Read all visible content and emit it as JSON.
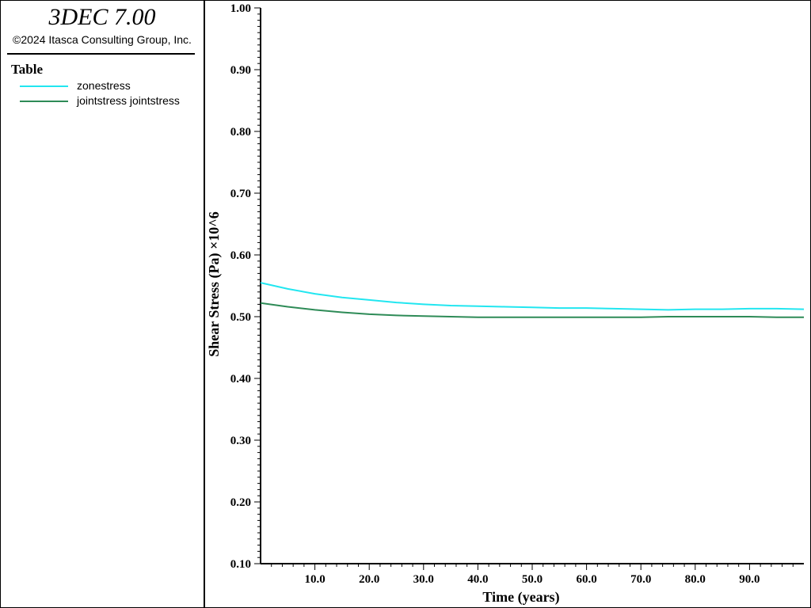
{
  "header": {
    "app_title": "3DEC 7.00",
    "copyright": "©2024 Itasca Consulting Group, Inc."
  },
  "legend": {
    "title": "Table",
    "items": [
      {
        "label": "zonestress",
        "color": "#22e6f0"
      },
      {
        "label": "jointstress jointstress",
        "color": "#2e8b57"
      }
    ]
  },
  "chart_data": {
    "type": "line",
    "xlabel": "Time (years)",
    "ylabel": "Shear Stress (Pa) ×10^6",
    "xlim": [
      0,
      100
    ],
    "ylim": [
      0.1,
      1.0
    ],
    "x_ticks": [
      10,
      20,
      30,
      40,
      50,
      60,
      70,
      80,
      90
    ],
    "x_tick_labels": [
      "10.0",
      "20.0",
      "30.0",
      "40.0",
      "50.0",
      "60.0",
      "70.0",
      "80.0",
      "90.0"
    ],
    "y_ticks": [
      0.1,
      0.2,
      0.3,
      0.4,
      0.5,
      0.6,
      0.7,
      0.8,
      0.9,
      1.0
    ],
    "y_tick_labels": [
      "0.10",
      "0.20",
      "0.30",
      "0.40",
      "0.50",
      "0.60",
      "0.70",
      "0.80",
      "0.90",
      "1.00"
    ],
    "grid": false,
    "series": [
      {
        "name": "zonestress",
        "color": "#22e6f0",
        "x": [
          0,
          5,
          10,
          15,
          20,
          25,
          30,
          35,
          40,
          45,
          50,
          55,
          60,
          65,
          70,
          75,
          80,
          85,
          90,
          95,
          100
        ],
        "y": [
          0.555,
          0.545,
          0.537,
          0.531,
          0.527,
          0.523,
          0.52,
          0.518,
          0.517,
          0.516,
          0.515,
          0.514,
          0.514,
          0.513,
          0.512,
          0.511,
          0.512,
          0.512,
          0.513,
          0.513,
          0.512
        ]
      },
      {
        "name": "jointstress jointstress",
        "color": "#2e8b57",
        "x": [
          0,
          5,
          10,
          15,
          20,
          25,
          30,
          35,
          40,
          45,
          50,
          55,
          60,
          65,
          70,
          75,
          80,
          85,
          90,
          95,
          100
        ],
        "y": [
          0.522,
          0.516,
          0.511,
          0.507,
          0.504,
          0.502,
          0.501,
          0.5,
          0.499,
          0.499,
          0.499,
          0.499,
          0.499,
          0.499,
          0.499,
          0.5,
          0.5,
          0.5,
          0.5,
          0.499,
          0.499
        ]
      }
    ]
  }
}
